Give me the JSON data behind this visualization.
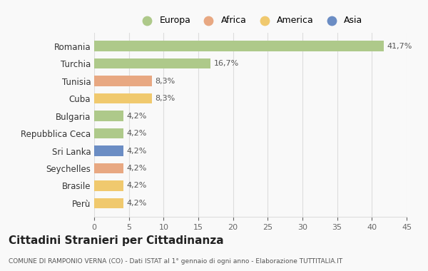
{
  "categories": [
    "Romania",
    "Turchia",
    "Tunisia",
    "Cuba",
    "Bulgaria",
    "Repubblica Ceca",
    "Sri Lanka",
    "Seychelles",
    "Brasile",
    "Perù"
  ],
  "values": [
    41.7,
    16.7,
    8.3,
    8.3,
    4.2,
    4.2,
    4.2,
    4.2,
    4.2,
    4.2
  ],
  "labels": [
    "41,7%",
    "16,7%",
    "8,3%",
    "8,3%",
    "4,2%",
    "4,2%",
    "4,2%",
    "4,2%",
    "4,2%",
    "4,2%"
  ],
  "colors": [
    "#aec98a",
    "#aec98a",
    "#e8a882",
    "#f0c96e",
    "#aec98a",
    "#aec98a",
    "#6b8dc4",
    "#e8a882",
    "#f0c96e",
    "#f0c96e"
  ],
  "legend_labels": [
    "Europa",
    "Africa",
    "America",
    "Asia"
  ],
  "legend_colors": [
    "#aec98a",
    "#e8a882",
    "#f0c96e",
    "#6b8dc4"
  ],
  "title": "Cittadini Stranieri per Cittadinanza",
  "subtitle": "COMUNE DI RAMPONIO VERNA (CO) - Dati ISTAT al 1° gennaio di ogni anno - Elaborazione TUTTITALIA.IT",
  "xlim": [
    0,
    45
  ],
  "xticks": [
    0,
    5,
    10,
    15,
    20,
    25,
    30,
    35,
    40,
    45
  ],
  "background_color": "#f9f9f9",
  "grid_color": "#dddddd"
}
